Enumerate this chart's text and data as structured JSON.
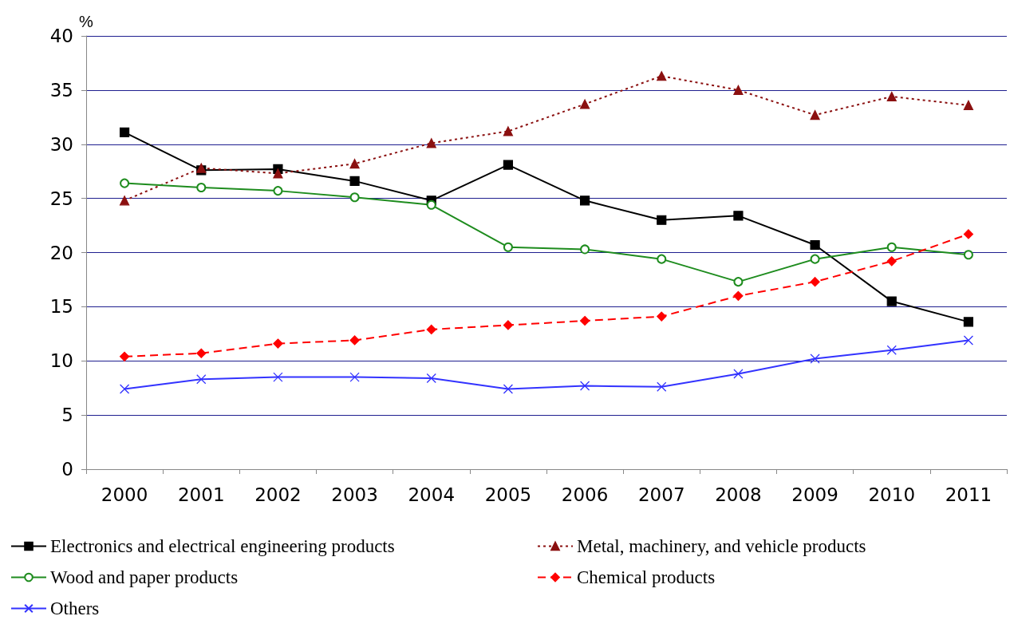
{
  "chart_data": {
    "type": "line",
    "ylabel": "%",
    "categories": [
      "2000",
      "2001",
      "2002",
      "2003",
      "2004",
      "2005",
      "2006",
      "2007",
      "2008",
      "2009",
      "2010",
      "2011"
    ],
    "ylim": [
      0,
      40
    ],
    "yticks": [
      0,
      5,
      10,
      15,
      20,
      25,
      30,
      35,
      40
    ],
    "grid": "y",
    "legend": "bottom",
    "series": [
      {
        "name": "Electronics and electrical engineering products",
        "color": "#000000",
        "marker": "square",
        "line_style": "solid",
        "values": [
          31.1,
          27.6,
          27.7,
          26.6,
          24.8,
          28.1,
          24.8,
          23.0,
          23.4,
          20.7,
          15.5,
          13.6
        ]
      },
      {
        "name": "Metal, machinery, and vehicle products",
        "color": "#8b1010",
        "marker": "triangle",
        "line_style": "dotted",
        "values": [
          24.8,
          27.8,
          27.3,
          28.2,
          30.1,
          31.2,
          33.7,
          36.3,
          35.0,
          32.7,
          34.4,
          33.6
        ]
      },
      {
        "name": "Wood and paper products",
        "color": "#1e8c1e",
        "marker": "circle",
        "line_style": "solid",
        "values": [
          26.4,
          26.0,
          25.7,
          25.1,
          24.4,
          20.5,
          20.3,
          19.4,
          17.3,
          19.4,
          20.5,
          19.8
        ]
      },
      {
        "name": "Chemical products",
        "color": "#ff0000",
        "marker": "diamond",
        "line_style": "dashed",
        "values": [
          10.4,
          10.7,
          11.6,
          11.9,
          12.9,
          13.3,
          13.7,
          14.1,
          16.0,
          17.3,
          19.2,
          21.7
        ]
      },
      {
        "name": "Others",
        "color": "#3333ff",
        "marker": "cross",
        "line_style": "solid",
        "values": [
          7.4,
          8.3,
          8.5,
          8.5,
          8.4,
          7.4,
          7.7,
          7.6,
          8.8,
          10.2,
          11.0,
          11.9
        ]
      }
    ]
  }
}
